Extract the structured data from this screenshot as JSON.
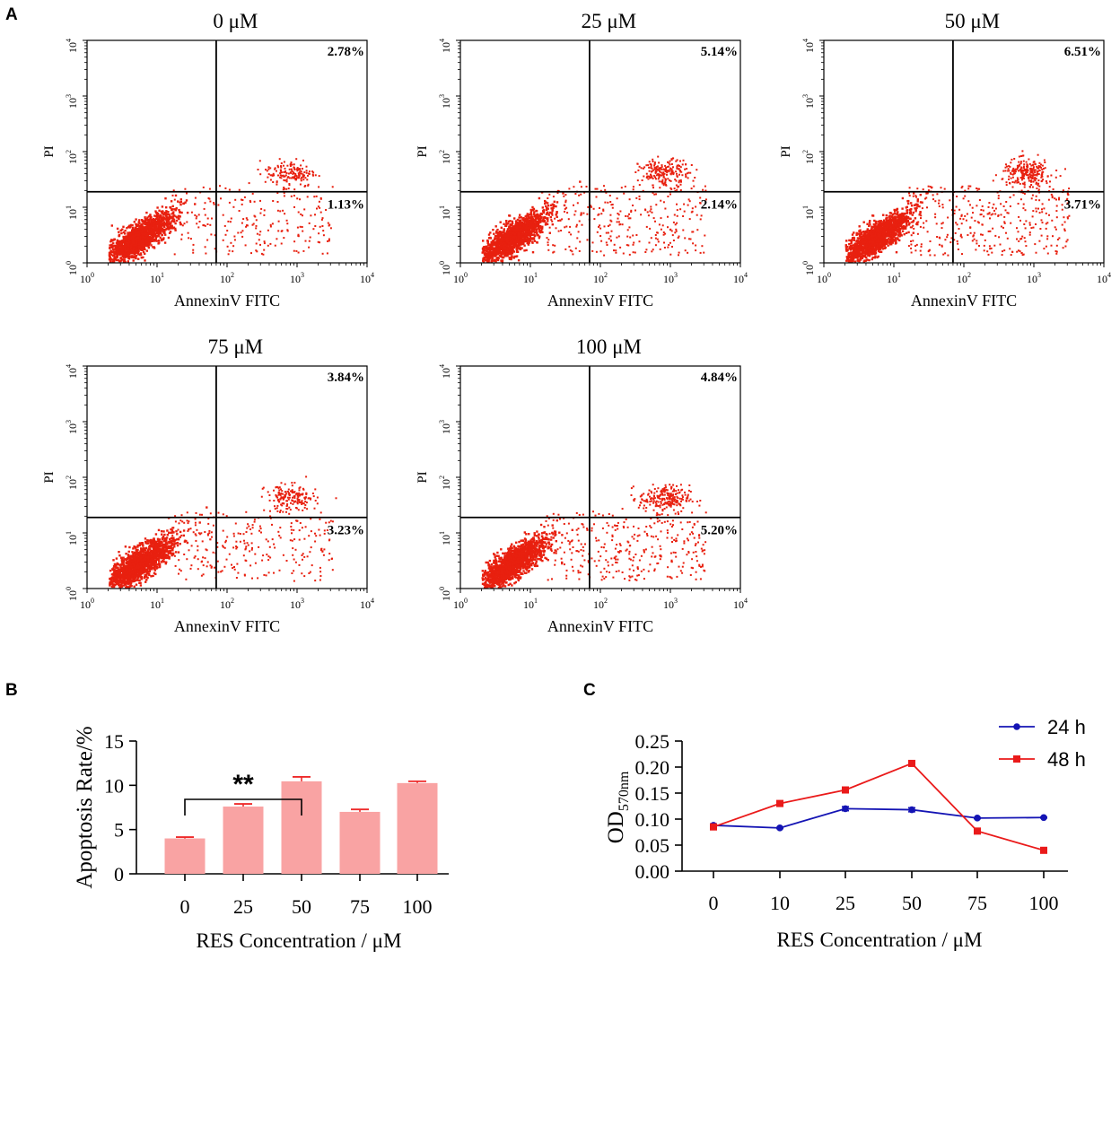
{
  "panels": {
    "A": "A",
    "B": "B",
    "C": "C"
  },
  "flow": {
    "xlabel": "AnnexinV FITC",
    "ylabel": "PI",
    "tick_base": "10",
    "tick_exps": [
      "0",
      "1",
      "2",
      "3",
      "4"
    ]
  },
  "colors": {
    "dots": "#e8200f",
    "bars": "#f9a3a3",
    "bar_err": "#ee2a2a",
    "line24": "#1414b4",
    "line48": "#ea1a1a"
  },
  "chart_data": [
    {
      "type": "scatter",
      "name": "flow-cytometry-panels",
      "xscale": "log",
      "yscale": "log",
      "xlim": [
        1,
        10000
      ],
      "ylim": [
        1,
        10000
      ],
      "plots": [
        {
          "title": "0 μM",
          "upper_right": "2.78%",
          "lower_right": "1.13%",
          "gate_x": 70,
          "gate_y": 19,
          "spread": 1.0
        },
        {
          "title": "25 μM",
          "upper_right": "5.14%",
          "lower_right": "2.14%",
          "gate_x": 70,
          "gate_y": 19,
          "spread": 1.35
        },
        {
          "title": "50 μM",
          "upper_right": "6.51%",
          "lower_right": "3.71%",
          "gate_x": 70,
          "gate_y": 19,
          "spread": 1.6
        },
        {
          "title": "75 μM",
          "upper_right": "3.84%",
          "lower_right": "3.23%",
          "gate_x": 70,
          "gate_y": 19,
          "spread": 1.2
        },
        {
          "title": "100 μM",
          "upper_right": "4.84%",
          "lower_right": "5.20%",
          "gate_x": 70,
          "gate_y": 19,
          "spread": 1.5
        }
      ]
    },
    {
      "type": "bar",
      "name": "apoptosis-rate",
      "categories": [
        "0",
        "25",
        "50",
        "75",
        "100"
      ],
      "values": [
        4.0,
        7.6,
        10.45,
        7.0,
        10.25
      ],
      "errors": [
        0.15,
        0.3,
        0.5,
        0.28,
        0.2
      ],
      "xlabel": "RES Concentration / μM",
      "ylabel": "Apoptosis Rate/%",
      "ylim": [
        0,
        15
      ],
      "yticks": [
        "0",
        "5",
        "10",
        "15"
      ],
      "significance": {
        "from": "0",
        "to": "50",
        "label": "**"
      }
    },
    {
      "type": "line",
      "name": "od570",
      "categories": [
        "0",
        "10",
        "25",
        "50",
        "75",
        "100"
      ],
      "series": [
        {
          "name": "24 h",
          "values": [
            0.088,
            0.083,
            0.12,
            0.118,
            0.102,
            0.103
          ],
          "errors": [
            0.003,
            0.001,
            0.004,
            0.004,
            0.001,
            0.001
          ]
        },
        {
          "name": "48 h",
          "values": [
            0.085,
            0.13,
            0.156,
            0.207,
            0.077,
            0.04
          ],
          "errors": [
            0.002,
            0.001,
            0.002,
            0.004,
            0.001,
            0.001
          ]
        }
      ],
      "xlabel": "RES Concentration / μM",
      "ylabel_main": "OD",
      "ylabel_sub": "570nm",
      "ylim": [
        0,
        0.25
      ],
      "yticks": [
        "0.00",
        "0.05",
        "0.10",
        "0.15",
        "0.20",
        "0.25"
      ]
    }
  ]
}
